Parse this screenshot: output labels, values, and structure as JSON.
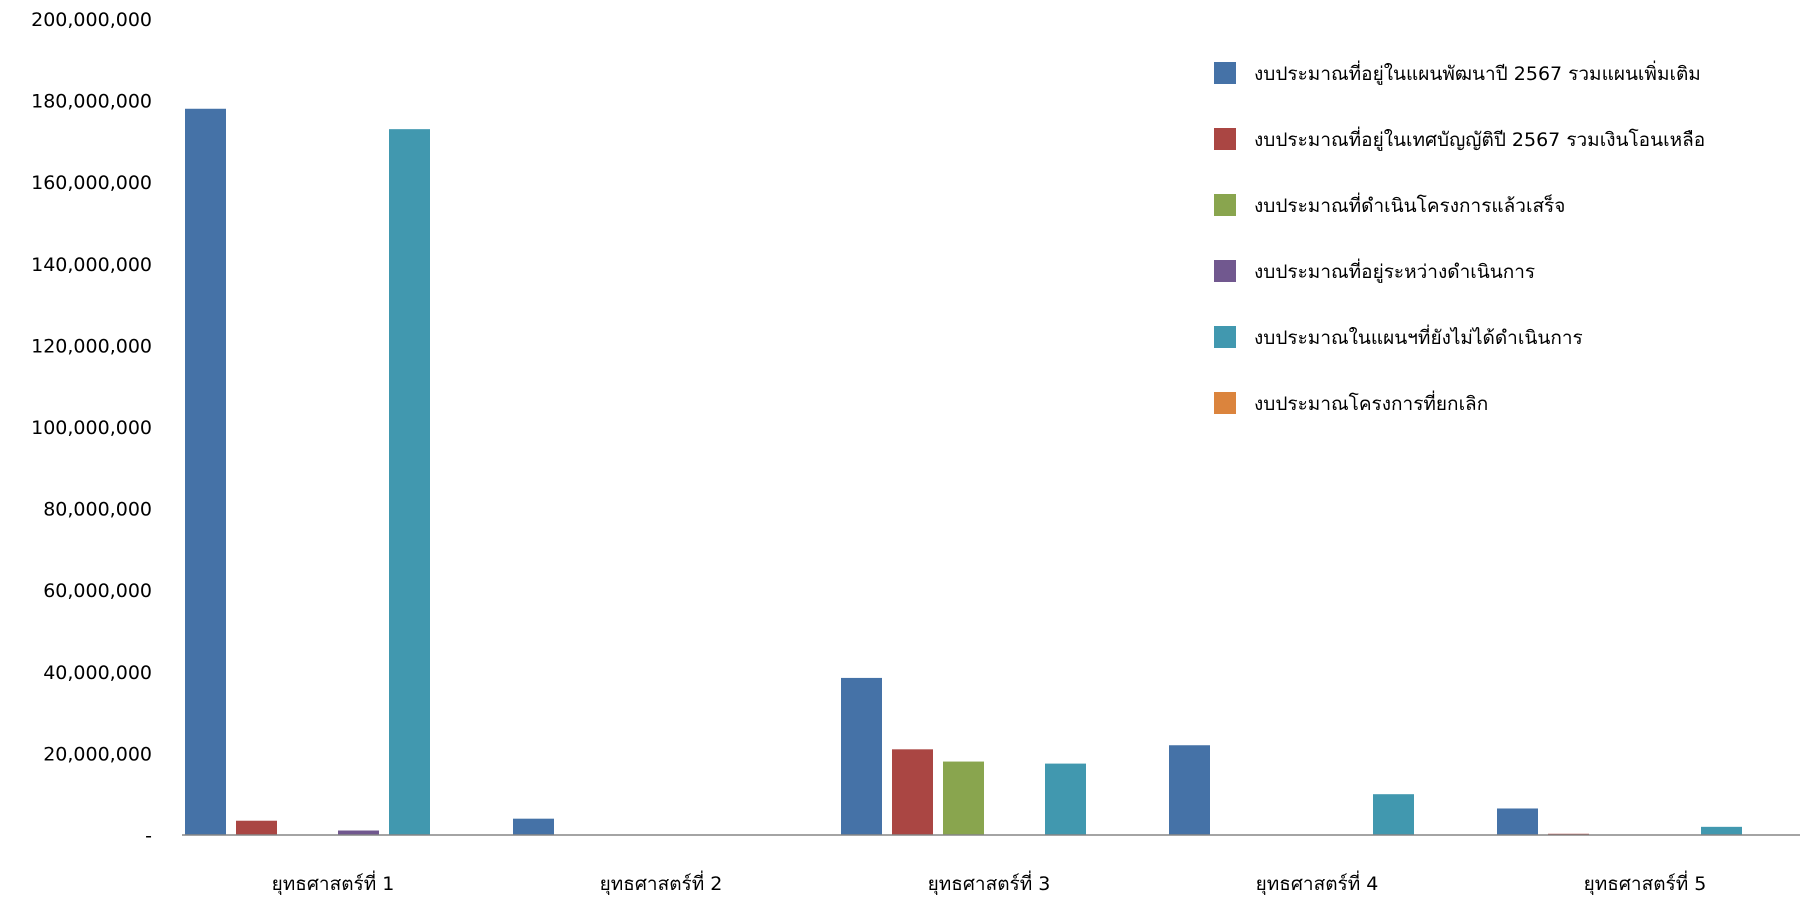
{
  "chart_data": {
    "type": "bar",
    "title": "",
    "xlabel": "",
    "ylabel": "",
    "ylim": [
      0,
      200000000
    ],
    "y_ticks": [
      0,
      20000000,
      40000000,
      60000000,
      80000000,
      100000000,
      120000000,
      140000000,
      160000000,
      180000000,
      200000000
    ],
    "y_tick_labels": [
      "-",
      "20,000,000",
      "40,000,000",
      "60,000,000",
      "80,000,000",
      "100,000,000",
      "120,000,000",
      "140,000,000",
      "160,000,000",
      "180,000,000",
      "200,000,000"
    ],
    "grid": false,
    "legend_position": "top-right",
    "categories": [
      "ยุทธศาสตร์ที่ 1",
      "ยุทธศาสตร์ที่ 2",
      "ยุทธศาสตร์ที่ 3",
      "ยุทธศาสตร์ที่ 4",
      "ยุทธศาสตร์ที่ 5"
    ],
    "series": [
      {
        "name": "งบประมาณที่อยู่ในแผนพัฒนาปี 2567 รวมแผนเพิ่มเติม",
        "color": "#4572A7",
        "values": [
          178000000,
          4000000,
          38500000,
          22000000,
          6500000
        ]
      },
      {
        "name": "งบประมาณที่อยู่ในเทศบัญญัติปี 2567 รวมเงินโอนเหลือ",
        "color": "#AA4643",
        "values": [
          3500000,
          0,
          21000000,
          0,
          300000
        ]
      },
      {
        "name": "งบประมาณที่ดำเนินโครงการแล้วเสร็จ",
        "color": "#89A54E",
        "values": [
          0,
          0,
          18000000,
          0,
          0
        ]
      },
      {
        "name": "งบประมาณที่อยู่ระหว่างดำเนินการ",
        "color": "#71588F",
        "values": [
          1100000,
          0,
          0,
          0,
          0
        ]
      },
      {
        "name": "งบประมาณในแผนฯที่ยังไม่ได้ดำเนินการ",
        "color": "#4198AF",
        "values": [
          173000000,
          0,
          17500000,
          10000000,
          2000000
        ]
      },
      {
        "name": "งบประมาณโครงการที่ยกเลิก",
        "color": "#DB843D",
        "values": [
          0,
          0,
          0,
          0,
          0
        ]
      }
    ]
  }
}
